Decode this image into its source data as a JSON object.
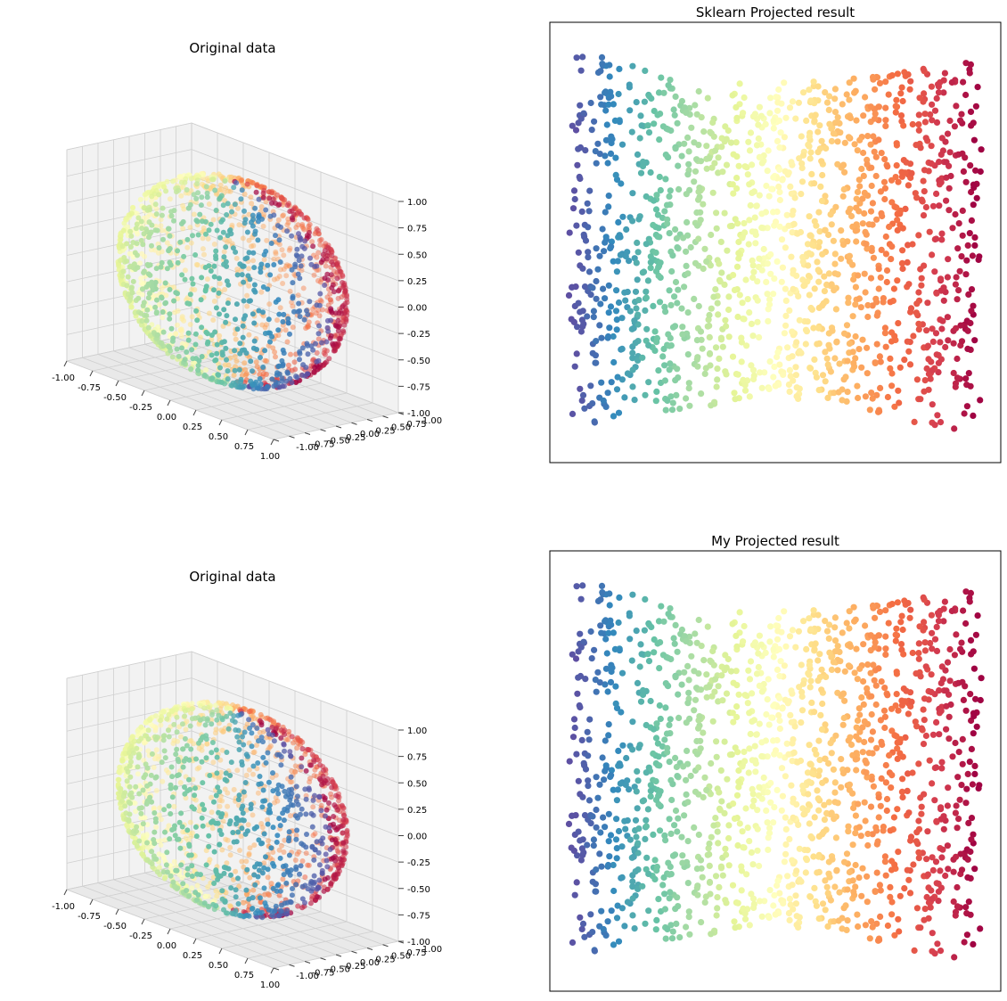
{
  "figure": {
    "background": "#ffffff"
  },
  "chart_data": [
    {
      "panel": "top-left",
      "type": "scatter3d",
      "title": "Original data",
      "x_ticks": [
        "-1.00",
        "-0.75",
        "-0.50",
        "-0.25",
        "0.00",
        "0.25",
        "0.50",
        "0.75",
        "1.00"
      ],
      "y_ticks": [
        "-1.00",
        "-0.75",
        "-0.50",
        "-0.25",
        "0.00",
        "0.25",
        "0.50",
        "0.75",
        "1.00"
      ],
      "z_ticks": [
        "-1.00",
        "-0.75",
        "-0.50",
        "-0.25",
        "0.00",
        "0.25",
        "0.50",
        "0.75",
        "1.00"
      ],
      "xlim": [
        -1,
        1
      ],
      "ylim": [
        -1,
        1
      ],
      "zlim": [
        -1,
        1
      ],
      "colormap": "Spectral",
      "grid": true,
      "description": "points on a unit sphere surface, colored by azimuth"
    },
    {
      "panel": "top-right",
      "type": "scatter",
      "title": "Sklearn Projected result",
      "ticks": "none",
      "colormap": "Spectral"
    },
    {
      "panel": "bottom-left",
      "type": "scatter3d",
      "title": "Original data",
      "x_ticks": [
        "-1.00",
        "-0.75",
        "-0.50",
        "-0.25",
        "0.00",
        "0.25",
        "0.50",
        "0.75",
        "1.00"
      ],
      "y_ticks": [
        "-1.00",
        "-0.75",
        "-0.50",
        "-0.25",
        "0.00",
        "0.25",
        "0.50",
        "0.75",
        "1.00"
      ],
      "z_ticks": [
        "-1.00",
        "-0.75",
        "-0.50",
        "-0.25",
        "0.00",
        "0.25",
        "0.50",
        "0.75",
        "1.00"
      ],
      "xlim": [
        -1,
        1
      ],
      "ylim": [
        -1,
        1
      ],
      "zlim": [
        -1,
        1
      ],
      "colormap": "Spectral",
      "grid": true
    },
    {
      "panel": "bottom-right",
      "type": "scatter",
      "title": "My Projected result",
      "ticks": "none",
      "colormap": "Spectral"
    }
  ],
  "colors": {
    "spectral": [
      "#9e0142",
      "#d53e4f",
      "#f46d43",
      "#fdae61",
      "#fee08b",
      "#ffffbf",
      "#e6f598",
      "#abdda4",
      "#66c2a5",
      "#3288bd",
      "#5e4fa2"
    ],
    "pane": "#f2f2f2",
    "pane_side": "#e9e9e9",
    "grid": "#cfcfcf"
  }
}
